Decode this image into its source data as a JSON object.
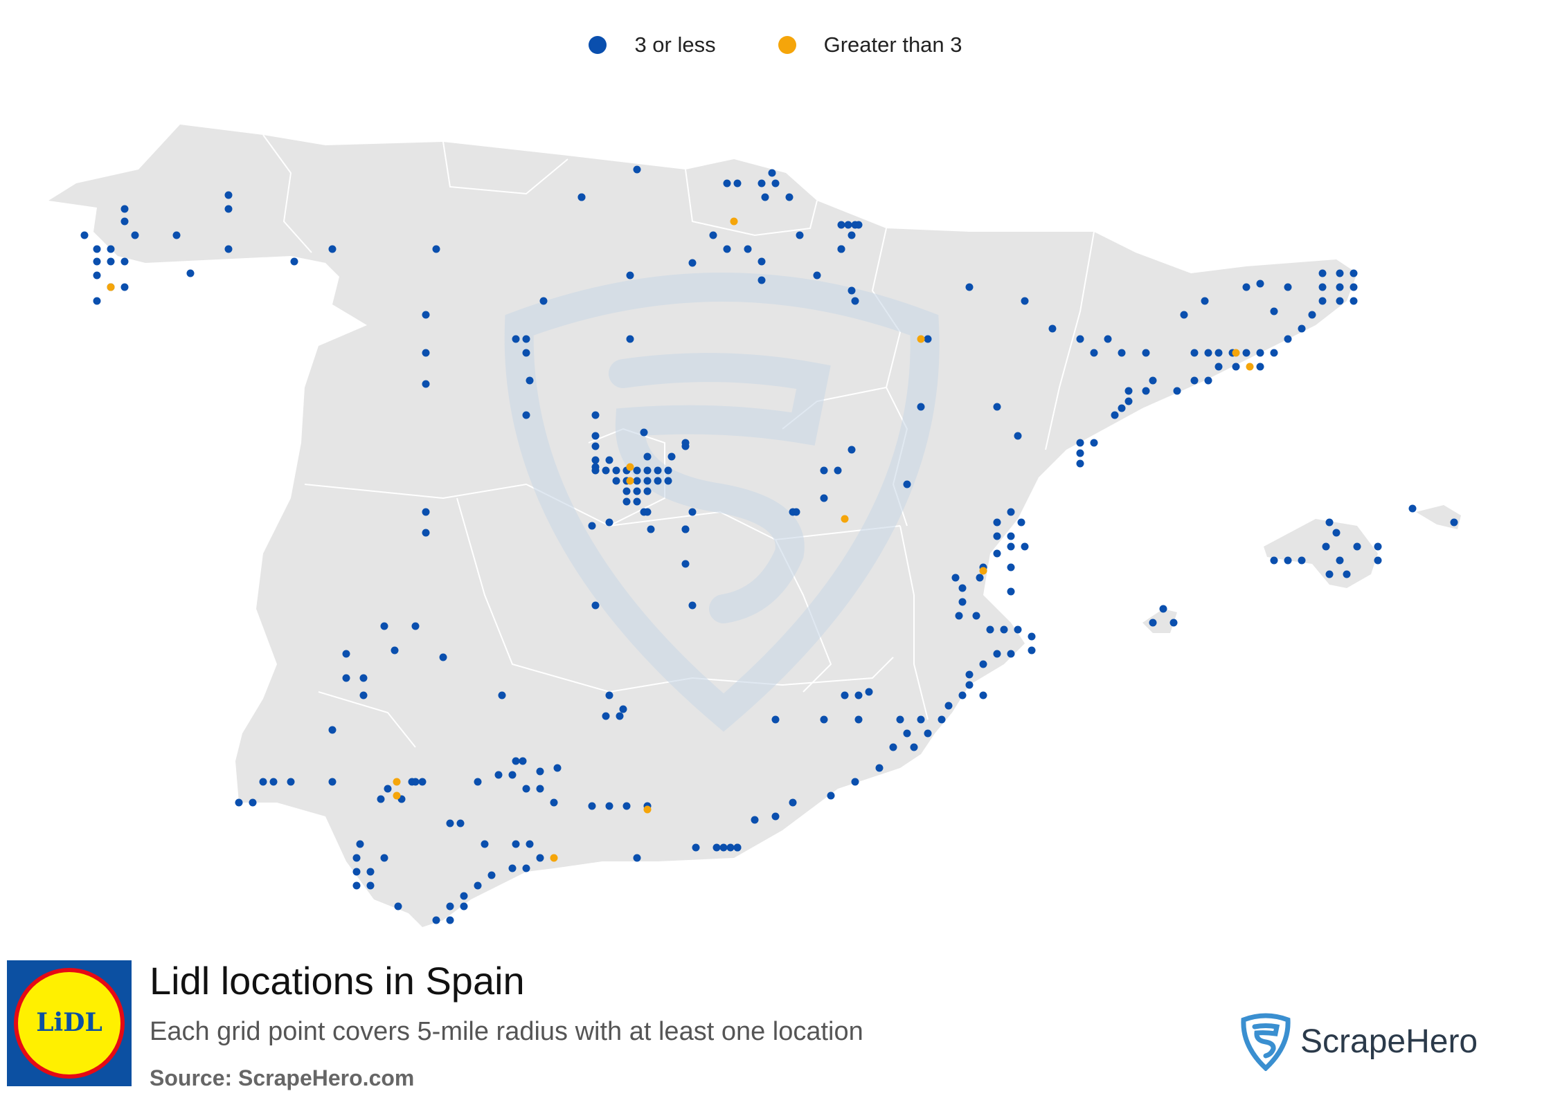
{
  "legend": [
    {
      "label": "3 or less",
      "color": "#0a4fae"
    },
    {
      "label": "Greater than 3",
      "color": "#f5a50a"
    }
  ],
  "footer": {
    "title": "Lidl locations in Spain",
    "subtitle": "Each grid point covers 5-mile radius with at least one location",
    "source": "Source: ScrapeHero.com",
    "logo_text": "LiDL",
    "brand": "ScrapeHero"
  },
  "colors": {
    "land": "#e5e5e5",
    "border": "#ffffff",
    "low": "#0a4fae",
    "high": "#f5a50a",
    "lidl_blue": "#0c50a2",
    "lidl_yellow": "#fff000",
    "lidl_red": "#e60a14",
    "watermark": "#c8d7e6",
    "brand_icon": "#3a8fd0"
  },
  "icons": [
    "lidl-logo-icon",
    "scrapehero-shield-icon",
    "scrapehero-watermark-icon"
  ]
}
